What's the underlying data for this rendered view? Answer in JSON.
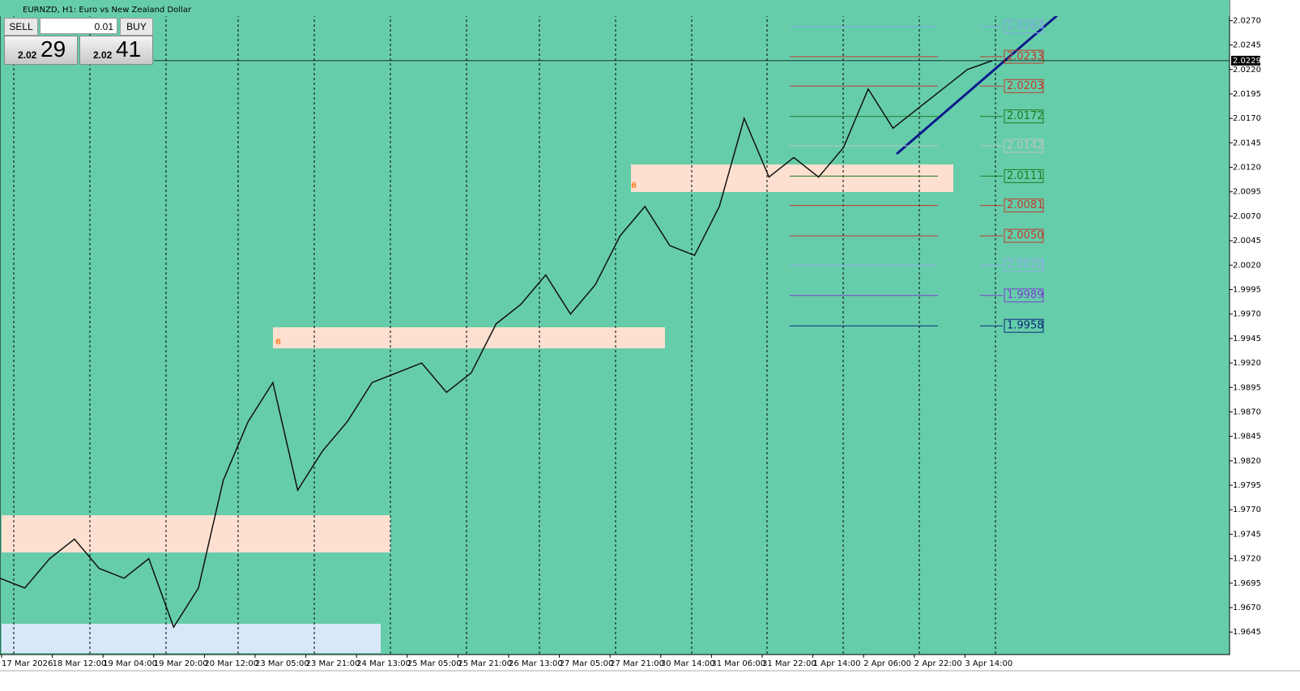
{
  "header": {
    "title": "EURNZD, H1:  Euro vs New Zealand Dollar"
  },
  "trade_panel": {
    "sell": "SELL",
    "buy": "BUY",
    "lot": "0.01",
    "bid_big": "2.02",
    "bid_small": "29",
    "ask_big": "2.02",
    "ask_small": "41"
  },
  "chart_data": {
    "type": "line",
    "series": [
      {
        "color": "#111111",
        "values": [
          1.97,
          1.969,
          1.972,
          1.974,
          1.971,
          1.97,
          1.972,
          1.965,
          1.969,
          1.98,
          1.986,
          1.99,
          1.979,
          1.983,
          1.986,
          1.99,
          1.991,
          1.992,
          1.989,
          1.991,
          1.996,
          1.998,
          2.001,
          1.997,
          2.0,
          2.005,
          2.008,
          2.004,
          2.003,
          2.008,
          2.017,
          2.011,
          2.013,
          2.011,
          2.014,
          2.02,
          2.016,
          2.018,
          2.02,
          2.022,
          2.0229
        ]
      }
    ],
    "x_labels": [
      "17 Mar 2026",
      "18 Mar 12:00",
      "19 Mar 04:00",
      "19 Mar 20:00",
      "20 Mar 12:00",
      "23 Mar 05:00",
      "23 Mar 21:00",
      "24 Mar 13:00",
      "25 Mar 05:00",
      "25 Mar 21:00",
      "26 Mar 13:00",
      "27 Mar 05:00",
      "27 Mar 21:00",
      "30 Mar 14:00",
      "31 Mar 06:00",
      "31 Mar 22:00",
      "1 Apr 14:00",
      "2 Apr 06:00",
      "2 Apr 22:00",
      "3 Apr 14:00"
    ],
    "ylim": [
      1.9622,
      2.0291
    ],
    "yticks": [
      {
        "value": 2.027,
        "label": "2.0270"
      },
      2.0245,
      {
        "value": 2.022,
        "label": "2.0220"
      },
      2.0195,
      {
        "value": 2.017,
        "label": "2.0170"
      },
      2.0145,
      {
        "value": 2.012,
        "label": "2.0120"
      },
      2.0095,
      {
        "value": 2.007,
        "label": "2.0070"
      },
      2.0045,
      {
        "value": 2.002,
        "label": "2.0020"
      },
      1.9995,
      {
        "value": 1.997,
        "label": "1.9970"
      },
      1.9945,
      {
        "value": 1.992,
        "label": "1.9920"
      },
      1.9895,
      {
        "value": 1.987,
        "label": "1.9870"
      },
      1.9845,
      {
        "value": 1.982,
        "label": "1.9820"
      },
      1.9795,
      {
        "value": 1.977,
        "label": "1.9770"
      },
      1.9745,
      {
        "value": 1.972,
        "label": "1.9720"
      },
      1.9695,
      {
        "value": 1.967,
        "label": "1.9670"
      },
      1.9645
    ],
    "current_price": 2.0229,
    "levels": [
      {
        "value": 2.0264,
        "label": "2.0264",
        "color": "#7fa8e0"
      },
      {
        "value": 2.0233,
        "label": "2.0233",
        "color": "#c0392b"
      },
      {
        "value": 2.0203,
        "label": "2.0203",
        "color": "#c0392b"
      },
      {
        "value": 2.0172,
        "label": "2.0172",
        "color": "#1e7b1e"
      },
      {
        "value": 2.0142,
        "label": "2.0142",
        "color": "#b8c8c0"
      },
      {
        "value": 2.0111,
        "label": "2.0111",
        "color": "#1e7b1e"
      },
      {
        "value": 2.0081,
        "label": "2.0081",
        "color": "#c0392b"
      },
      {
        "value": 2.005,
        "label": "2.0050",
        "color": "#c0392b"
      },
      {
        "value": 2.002,
        "label": "2.0020",
        "color": "#8fb0e8"
      },
      {
        "value": 1.9989,
        "label": "1.9989",
        "color": "#7b3fd0"
      },
      {
        "value": 1.9958,
        "label": "1.9958",
        "color": "#0a2a7a"
      }
    ],
    "annotations": [
      "6",
      "6"
    ]
  }
}
